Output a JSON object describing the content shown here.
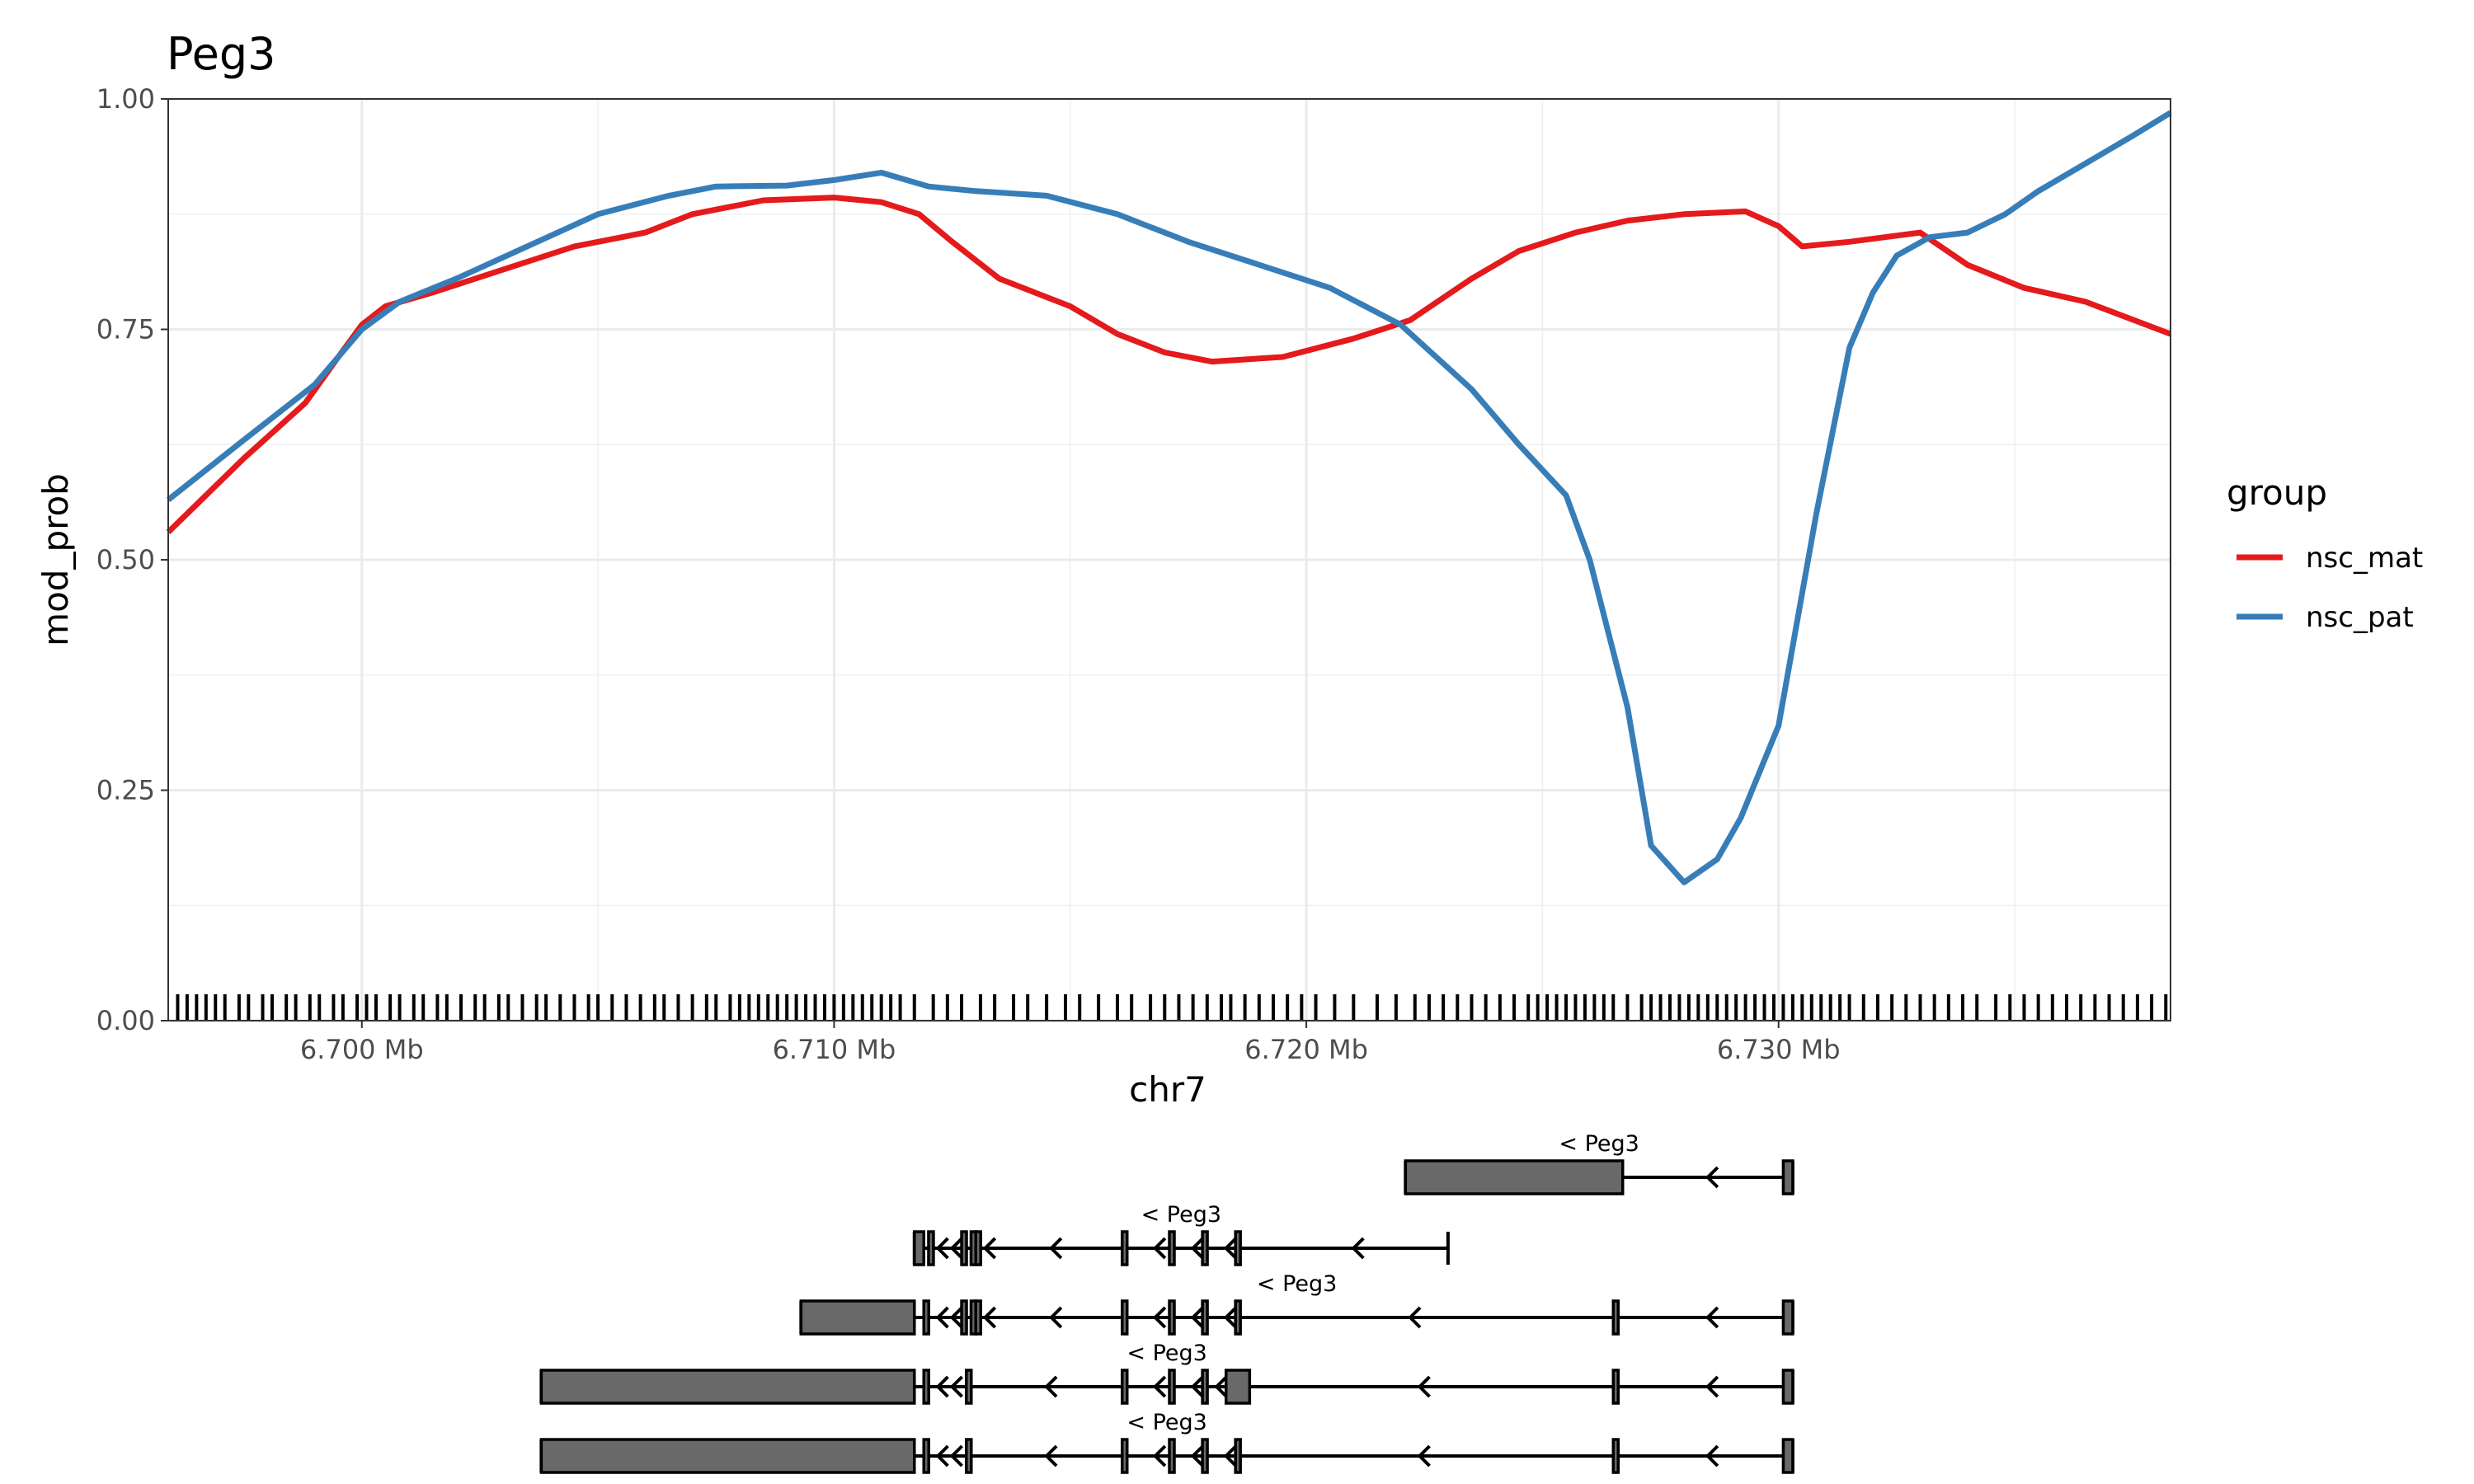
{
  "chart_data": {
    "type": "line",
    "title": "Peg3",
    "xlabel": "chr7",
    "ylabel": "mod_prob",
    "xlim": [
      6.6959,
      6.7383
    ],
    "ylim": [
      0,
      1
    ],
    "x_unit": "Mb",
    "x_ticks": [
      6.7,
      6.71,
      6.72,
      6.73
    ],
    "x_tick_labels": [
      "6.700 Mb",
      "6.710 Mb",
      "6.720 Mb",
      "6.730 Mb"
    ],
    "y_ticks": [
      0,
      0.25,
      0.5,
      0.75,
      1.0
    ],
    "y_tick_labels": [
      "0.00",
      "0.25",
      "0.50",
      "0.75",
      "1.00"
    ],
    "grid": true,
    "legend": {
      "title": "group",
      "position": "right"
    },
    "series": [
      {
        "name": "nsc_mat",
        "color": "#e41a1c",
        "x": [
          6.6959,
          6.6975,
          6.6988,
          6.6995,
          6.7,
          6.7005,
          6.7015,
          6.703,
          6.7045,
          6.706,
          6.707,
          6.7085,
          6.71,
          6.711,
          6.7118,
          6.7125,
          6.7135,
          6.715,
          6.716,
          6.717,
          6.718,
          6.7195,
          6.721,
          6.7222,
          6.7235,
          6.7245,
          6.7257,
          6.7268,
          6.728,
          6.7293,
          6.73,
          6.7305,
          6.7315,
          6.733,
          6.734,
          6.7352,
          6.7365,
          6.7383
        ],
        "y": [
          0.53,
          0.61,
          0.67,
          0.72,
          0.755,
          0.775,
          0.79,
          0.815,
          0.84,
          0.855,
          0.875,
          0.89,
          0.893,
          0.888,
          0.875,
          0.845,
          0.805,
          0.775,
          0.745,
          0.725,
          0.715,
          0.72,
          0.74,
          0.76,
          0.805,
          0.835,
          0.855,
          0.868,
          0.875,
          0.878,
          0.862,
          0.84,
          0.845,
          0.855,
          0.82,
          0.795,
          0.78,
          0.745
        ]
      },
      {
        "name": "nsc_pat",
        "color": "#377eb8",
        "x": [
          6.6959,
          6.6975,
          6.699,
          6.7,
          6.7008,
          6.702,
          6.7035,
          6.705,
          6.7065,
          6.7075,
          6.709,
          6.71,
          6.711,
          6.712,
          6.713,
          6.7145,
          6.716,
          6.7175,
          6.719,
          6.7205,
          6.722,
          6.7235,
          6.7245,
          6.7255,
          6.726,
          6.7268,
          6.7273,
          6.728,
          6.7287,
          6.7292,
          6.73,
          6.7308,
          6.7315,
          6.732,
          6.7325,
          6.7332,
          6.734,
          6.7348,
          6.7355,
          6.7365,
          6.7375,
          6.7383
        ],
        "y": [
          0.565,
          0.63,
          0.69,
          0.75,
          0.78,
          0.805,
          0.84,
          0.875,
          0.895,
          0.905,
          0.906,
          0.912,
          0.92,
          0.905,
          0.9,
          0.895,
          0.875,
          0.845,
          0.82,
          0.795,
          0.755,
          0.685,
          0.625,
          0.57,
          0.5,
          0.34,
          0.19,
          0.15,
          0.175,
          0.22,
          0.32,
          0.55,
          0.73,
          0.79,
          0.83,
          0.85,
          0.855,
          0.875,
          0.9,
          0.93,
          0.96,
          0.985
        ]
      }
    ],
    "rug_x": [
      6.6961,
      6.6963,
      6.6965,
      6.6967,
      6.6969,
      6.6971,
      6.6974,
      6.6976,
      6.6979,
      6.6981,
      6.6984,
      6.6986,
      6.6989,
      6.6991,
      6.6994,
      6.6996,
      6.6999,
      6.7001,
      6.7003,
      6.7006,
      6.7008,
      6.7011,
      6.7013,
      6.7016,
      6.7018,
      6.7021,
      6.7024,
      6.7026,
      6.7029,
      6.7031,
      6.7034,
      6.7037,
      6.7039,
      6.7042,
      6.7045,
      6.7048,
      6.705,
      6.7053,
      6.7056,
      6.7059,
      6.7062,
      6.7064,
      6.7067,
      6.707,
      6.7073,
      6.7075,
      6.7078,
      6.708,
      6.7082,
      6.7084,
      6.7086,
      6.7088,
      6.709,
      6.7092,
      6.7094,
      6.7096,
      6.7098,
      6.71,
      6.7102,
      6.7104,
      6.7106,
      6.7108,
      6.711,
      6.7112,
      6.7114,
      6.7117,
      6.7121,
      6.7124,
      6.7127,
      6.7131,
      6.7134,
      6.7138,
      6.7141,
      6.7145,
      6.7149,
      6.7152,
      6.7156,
      6.716,
      6.7163,
      6.7167,
      6.717,
      6.7173,
      6.7176,
      6.7179,
      6.7182,
      6.7184,
      6.7187,
      6.719,
      6.7193,
      6.7196,
      6.7199,
      6.7202,
      6.7206,
      6.721,
      6.7215,
      6.7219,
      6.7223,
      6.7226,
      6.7229,
      6.7232,
      6.7235,
      6.7238,
      6.7241,
      6.7244,
      6.7247,
      6.7249,
      6.7251,
      6.7253,
      6.7255,
      6.7257,
      6.7259,
      6.7261,
      6.7263,
      6.7265,
      6.7268,
      6.7271,
      6.7273,
      6.7275,
      6.7277,
      6.7279,
      6.7281,
      6.7283,
      6.7285,
      6.7287,
      6.7289,
      6.7291,
      6.7293,
      6.7295,
      6.7297,
      6.7299,
      6.7301,
      6.7303,
      6.7305,
      6.7307,
      6.7309,
      6.7311,
      6.7313,
      6.7315,
      6.7318,
      6.7321,
      6.7324,
      6.7327,
      6.733,
      6.7333,
      6.7336,
      6.7339,
      6.7342,
      6.7346,
      6.7349,
      6.7352,
      6.7355,
      6.7358,
      6.7361,
      6.7364,
      6.7367,
      6.737,
      6.7373,
      6.7376,
      6.7379,
      6.7382
    ]
  },
  "gene_track": {
    "transcripts": [
      {
        "label": "< Peg3",
        "line": [
          6.7221,
          6.7303
        ],
        "exons": [
          [
            6.7221,
            6.7267
          ],
          [
            6.7301,
            6.7303
          ]
        ],
        "arrows": [
          6.7285
        ]
      },
      {
        "label": "< Peg3",
        "line": [
          6.7117,
          6.723
        ],
        "exons": [
          [
            6.7117,
            6.7119
          ],
          [
            6.712,
            6.7121
          ],
          [
            6.7127,
            6.7128
          ],
          [
            6.7129,
            6.713
          ],
          [
            6.713,
            6.7131
          ],
          [
            6.7161,
            6.7162
          ],
          [
            6.7171,
            6.7172
          ],
          [
            6.7178,
            6.7179
          ],
          [
            6.7185,
            6.7186
          ]
        ],
        "arrows": [
          6.7122,
          6.7125,
          6.7132,
          6.7146,
          6.7168,
          6.7176,
          6.7183,
          6.721
        ]
      },
      {
        "label": "< Peg3",
        "line": [
          6.7093,
          6.7303
        ],
        "exons": [
          [
            6.7093,
            6.7117
          ],
          [
            6.7119,
            6.712
          ],
          [
            6.7127,
            6.7128
          ],
          [
            6.7129,
            6.713
          ],
          [
            6.713,
            6.7131
          ],
          [
            6.7161,
            6.7162
          ],
          [
            6.7171,
            6.7172
          ],
          [
            6.7178,
            6.7179
          ],
          [
            6.7185,
            6.7186
          ],
          [
            6.7265,
            6.7266
          ],
          [
            6.7301,
            6.7303
          ]
        ],
        "arrows": [
          6.7122,
          6.7125,
          6.7132,
          6.7146,
          6.7168,
          6.7176,
          6.7183,
          6.7222,
          6.7285
        ]
      },
      {
        "label": "< Peg3",
        "line": [
          6.7038,
          6.7303
        ],
        "exons": [
          [
            6.7038,
            6.7117
          ],
          [
            6.7119,
            6.712
          ],
          [
            6.7128,
            6.7129
          ],
          [
            6.7161,
            6.7162
          ],
          [
            6.7171,
            6.7172
          ],
          [
            6.7178,
            6.7179
          ],
          [
            6.7183,
            6.7188
          ],
          [
            6.7265,
            6.7266
          ],
          [
            6.7301,
            6.7303
          ]
        ],
        "arrows": [
          6.7122,
          6.7125,
          6.7145,
          6.7168,
          6.7176,
          6.7181,
          6.7224,
          6.7285
        ]
      },
      {
        "label": "< Peg3",
        "line": [
          6.7038,
          6.7303
        ],
        "exons": [
          [
            6.7038,
            6.7117
          ],
          [
            6.7119,
            6.712
          ],
          [
            6.7128,
            6.7129
          ],
          [
            6.7161,
            6.7162
          ],
          [
            6.7171,
            6.7172
          ],
          [
            6.7178,
            6.7179
          ],
          [
            6.7185,
            6.7186
          ],
          [
            6.7265,
            6.7266
          ],
          [
            6.7301,
            6.7303
          ]
        ],
        "arrows": [
          6.7122,
          6.7125,
          6.7145,
          6.7168,
          6.7176,
          6.7183,
          6.7224,
          6.7285
        ]
      }
    ]
  }
}
